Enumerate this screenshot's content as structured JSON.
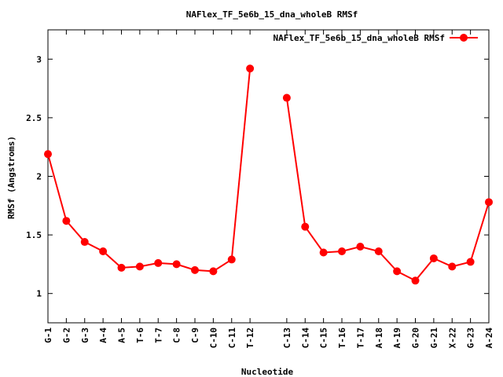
{
  "chart_data": {
    "type": "line",
    "title": "NAFlex_TF_5e6b_15_dna_wholeB RMSf",
    "xlabel": "Nucleotide",
    "ylabel": "RMSf (Angstroms)",
    "ylim": [
      0.75,
      3.25
    ],
    "yticks": [
      1,
      1.5,
      2,
      2.5,
      3
    ],
    "ytick_labels": [
      "1",
      "1.5",
      "2",
      "2.5",
      "3"
    ],
    "xlim": [
      1,
      25
    ],
    "grid": false,
    "legend": "top-right",
    "color": "#ff0000",
    "categories": [
      "G-1",
      "G-2",
      "G-3",
      "A-4",
      "A-5",
      "T-6",
      "T-7",
      "C-8",
      "C-9",
      "C-10",
      "C-11",
      "T-12",
      "C-13",
      "C-14",
      "C-15",
      "T-16",
      "T-17",
      "A-18",
      "A-19",
      "G-20",
      "G-21",
      "X-22",
      "G-23",
      "A-24"
    ],
    "x": [
      1,
      2,
      3,
      4,
      5,
      6,
      7,
      8,
      9,
      10,
      11,
      12,
      14,
      15,
      16,
      17,
      18,
      19,
      20,
      21,
      22,
      23,
      24,
      25
    ],
    "series": [
      {
        "name": "NAFlex_TF_5e6b_15_dna_wholeB RMSf",
        "segments": [
          [
            [
              1,
              2.19
            ],
            [
              2,
              1.62
            ],
            [
              3,
              1.44
            ],
            [
              4,
              1.36
            ],
            [
              5,
              1.22
            ],
            [
              6,
              1.23
            ],
            [
              7,
              1.26
            ],
            [
              8,
              1.25
            ],
            [
              9,
              1.2
            ],
            [
              10,
              1.19
            ],
            [
              11,
              1.29
            ],
            [
              12,
              2.92
            ]
          ],
          [
            [
              14,
              2.67
            ],
            [
              15,
              1.57
            ],
            [
              16,
              1.35
            ],
            [
              17,
              1.36
            ],
            [
              18,
              1.4
            ],
            [
              19,
              1.36
            ],
            [
              20,
              1.19
            ],
            [
              21,
              1.11
            ],
            [
              22,
              1.3
            ],
            [
              23,
              1.23
            ],
            [
              24,
              1.27
            ],
            [
              25,
              1.78
            ]
          ]
        ]
      }
    ]
  }
}
